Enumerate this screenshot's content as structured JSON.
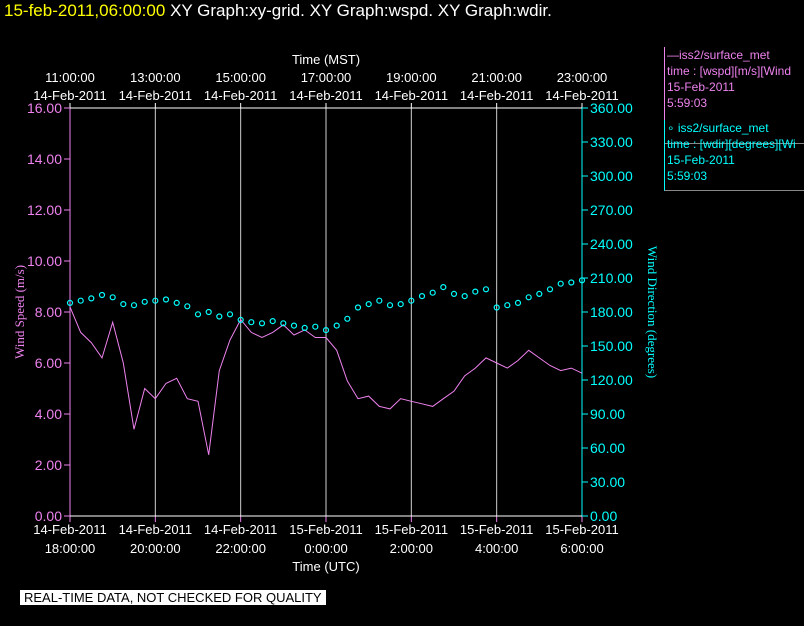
{
  "header": {
    "date": "15-feb-2011,06:00:00",
    "graphs": "XY Graph:xy-grid.  XY Graph:wspd.  XY Graph:wdir."
  },
  "legend": {
    "wspd": {
      "name": "—iss2/surface_met",
      "field": "time : [wspd][m/s][Wind",
      "date": "15-Feb-2011",
      "time": "5:59:03",
      "color": "#ee82ee"
    },
    "wdir": {
      "name": "∘ iss2/surface_met",
      "field": "time : [wdir][degrees][Wi",
      "date": "15-Feb-2011",
      "time": "5:59:03",
      "color": "#00ffff"
    }
  },
  "disclaimer": "REAL-TIME DATA, NOT CHECKED FOR QUALITY",
  "chart_data": {
    "type": "line",
    "top_axis_title": "Time (MST)",
    "bottom_axis_title": "Time (UTC)",
    "ylabel": "Wind Speed (m/s)",
    "y2label": "Wind Direction (degrees)",
    "ylim": [
      0,
      16
    ],
    "y2lim": [
      0,
      360
    ],
    "xlim_utc_hours": [
      18,
      30
    ],
    "grid": true,
    "y_ticks": [
      "0.00",
      "2.00",
      "4.00",
      "6.00",
      "8.00",
      "10.00",
      "12.00",
      "14.00",
      "16.00"
    ],
    "y2_ticks": [
      "0.00",
      "30.00",
      "60.00",
      "90.00",
      "120.00",
      "150.00",
      "180.00",
      "210.00",
      "240.00",
      "270.00",
      "300.00",
      "330.00",
      "360.00"
    ],
    "bottom_ticks": [
      {
        "date": "14-Feb-2011",
        "time": "18:00:00"
      },
      {
        "date": "14-Feb-2011",
        "time": "20:00:00"
      },
      {
        "date": "14-Feb-2011",
        "time": "22:00:00"
      },
      {
        "date": "15-Feb-2011",
        "time": "0:00:00"
      },
      {
        "date": "15-Feb-2011",
        "time": "2:00:00"
      },
      {
        "date": "15-Feb-2011",
        "time": "4:00:00"
      },
      {
        "date": "15-Feb-2011",
        "time": "6:00:00"
      }
    ],
    "top_ticks": [
      {
        "time": "11:00:00",
        "date": "14-Feb-2011"
      },
      {
        "time": "13:00:00",
        "date": "14-Feb-2011"
      },
      {
        "time": "15:00:00",
        "date": "14-Feb-2011"
      },
      {
        "time": "17:00:00",
        "date": "14-Feb-2011"
      },
      {
        "time": "19:00:00",
        "date": "14-Feb-2011"
      },
      {
        "time": "21:00:00",
        "date": "14-Feb-2011"
      },
      {
        "time": "23:00:00",
        "date": "14-Feb-2011"
      }
    ],
    "series": [
      {
        "name": "wspd",
        "axis": "left",
        "style": "line",
        "color": "#ee82ee",
        "x_utc_hours": [
          18.0,
          18.25,
          18.5,
          18.75,
          19.0,
          19.25,
          19.5,
          19.75,
          20.0,
          20.25,
          20.5,
          20.75,
          21.0,
          21.25,
          21.5,
          21.75,
          22.0,
          22.25,
          22.5,
          22.75,
          23.0,
          23.25,
          23.5,
          23.75,
          24.0,
          24.25,
          24.5,
          24.75,
          25.0,
          25.25,
          25.5,
          25.75,
          26.0,
          26.25,
          26.5,
          26.75,
          27.0,
          27.25,
          27.5,
          27.75,
          28.0,
          28.25,
          28.5,
          28.75,
          29.0,
          29.25,
          29.5,
          29.75,
          30.0
        ],
        "values": [
          8.2,
          7.2,
          6.8,
          6.2,
          7.6,
          6.0,
          3.4,
          5.0,
          4.6,
          5.2,
          5.4,
          4.6,
          4.5,
          2.4,
          5.7,
          6.9,
          7.7,
          7.2,
          7.0,
          7.2,
          7.5,
          7.1,
          7.3,
          7.0,
          7.0,
          6.5,
          5.3,
          4.6,
          4.7,
          4.3,
          4.2,
          4.6,
          4.5,
          4.4,
          4.3,
          4.6,
          4.9,
          5.5,
          5.8,
          6.2,
          6.0,
          5.8,
          6.1,
          6.5,
          6.2,
          5.9,
          5.7,
          5.8,
          5.6
        ]
      },
      {
        "name": "wdir",
        "axis": "right",
        "style": "points",
        "color": "#00ffff",
        "x_utc_hours": [
          18.0,
          18.25,
          18.5,
          18.75,
          19.0,
          19.25,
          19.5,
          19.75,
          20.0,
          20.25,
          20.5,
          20.75,
          21.0,
          21.25,
          21.5,
          21.75,
          22.0,
          22.25,
          22.5,
          22.75,
          23.0,
          23.25,
          23.5,
          23.75,
          24.0,
          24.25,
          24.5,
          24.75,
          25.0,
          25.25,
          25.5,
          25.75,
          26.0,
          26.25,
          26.5,
          26.75,
          27.0,
          27.25,
          27.5,
          27.75,
          28.0,
          28.25,
          28.5,
          28.75,
          29.0,
          29.25,
          29.5,
          29.75,
          30.0
        ],
        "values": [
          188,
          190,
          192,
          195,
          193,
          187,
          186,
          189,
          190,
          191,
          188,
          185,
          178,
          180,
          176,
          178,
          173,
          171,
          170,
          172,
          170,
          168,
          166,
          167,
          164,
          168,
          174,
          184,
          187,
          190,
          186,
          187,
          190,
          194,
          197,
          202,
          196,
          194,
          198,
          200,
          184,
          186,
          188,
          193,
          196,
          200,
          205,
          206,
          208
        ]
      }
    ]
  }
}
